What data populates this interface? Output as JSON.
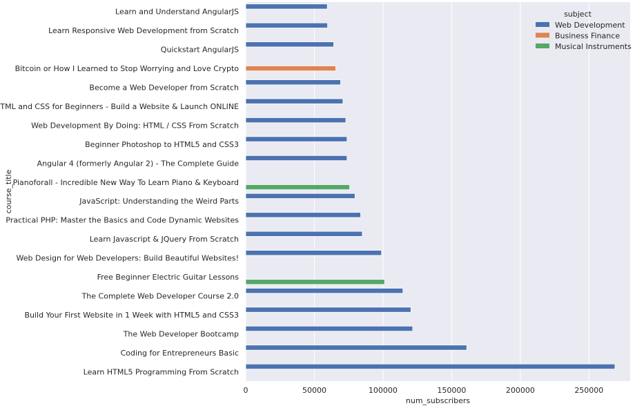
{
  "chart_data": {
    "type": "bar",
    "orientation": "horizontal",
    "xlabel": "num_subscribers",
    "ylabel": "course_title",
    "xlim": [
      0,
      280000
    ],
    "xticks": [
      0,
      50000,
      100000,
      150000,
      200000,
      250000
    ],
    "grid": true,
    "legend_title": "subject",
    "legend_position": "top-right",
    "series": [
      {
        "name": "Web Development",
        "color": "#4c72b0"
      },
      {
        "name": "Business Finance",
        "color": "#dd8452"
      },
      {
        "name": "Musical Instruments",
        "color": "#55a868"
      }
    ],
    "categories": [
      "Learn and Understand AngularJS",
      "Learn Responsive Web Development from Scratch",
      "Quickstart AngularJS",
      "Bitcoin or How I Learned to Stop Worrying and Love Crypto",
      "Become a Web Developer from Scratch",
      "HTML and CSS for Beginners - Build a Website & Launch ONLINE",
      "Web Development By Doing: HTML / CSS From Scratch",
      "Beginner Photoshop to HTML5 and CSS3",
      "Angular 4 (formerly Angular 2) - The Complete Guide",
      "Pianoforall - Incredible New Way To Learn Piano & Keyboard",
      "JavaScript: Understanding the Weird Parts",
      "Practical PHP: Master the Basics and Code Dynamic Websites",
      "Learn Javascript & JQuery From Scratch",
      "Web Design for Web Developers: Build Beautiful Websites!",
      "Free Beginner Electric Guitar Lessons",
      "The Complete Web Developer Course 2.0",
      "Build Your First Website in 1 Week with HTML5 and CSS3",
      "The Web Developer Bootcamp",
      "Coding for Entrepreneurs Basic",
      "Learn HTML5 Programming From Scratch"
    ],
    "values": [
      {
        "category": "Learn and Understand AngularJS",
        "series": "Web Development",
        "value": 59400
      },
      {
        "category": "Learn Responsive Web Development from Scratch",
        "series": "Web Development",
        "value": 59600
      },
      {
        "category": "Quickstart AngularJS",
        "series": "Web Development",
        "value": 64100
      },
      {
        "category": "Bitcoin or How I Learned to Stop Worrying and Love Crypto",
        "series": "Business Finance",
        "value": 65600
      },
      {
        "category": "Become a Web Developer from Scratch",
        "series": "Web Development",
        "value": 69100
      },
      {
        "category": "HTML and CSS for Beginners - Build a Website & Launch ONLINE",
        "series": "Web Development",
        "value": 70800
      },
      {
        "category": "Web Development By Doing: HTML / CSS From Scratch",
        "series": "Web Development",
        "value": 72900
      },
      {
        "category": "Beginner Photoshop to HTML5 and CSS3",
        "series": "Web Development",
        "value": 73800
      },
      {
        "category": "Angular 4 (formerly Angular 2) - The Complete Guide",
        "series": "Web Development",
        "value": 73800
      },
      {
        "category": "Pianoforall - Incredible New Way To Learn Piano & Keyboard",
        "series": "Musical Instruments",
        "value": 75700
      },
      {
        "category": "JavaScript: Understanding the Weird Parts",
        "series": "Web Development",
        "value": 79600
      },
      {
        "category": "Practical PHP: Master the Basics and Code Dynamic Websites",
        "series": "Web Development",
        "value": 83700
      },
      {
        "category": "Learn Javascript & JQuery From Scratch",
        "series": "Web Development",
        "value": 84900
      },
      {
        "category": "Web Design for Web Developers: Build Beautiful Websites!",
        "series": "Web Development",
        "value": 98900
      },
      {
        "category": "Free Beginner Electric Guitar Lessons",
        "series": "Musical Instruments",
        "value": 101200
      },
      {
        "category": "The Complete Web Developer Course 2.0",
        "series": "Web Development",
        "value": 114500
      },
      {
        "category": "Build Your First Website in 1 Week with HTML5 and CSS3",
        "series": "Web Development",
        "value": 120300
      },
      {
        "category": "The Web Developer Bootcamp",
        "series": "Web Development",
        "value": 121600
      },
      {
        "category": "Coding for Entrepreneurs Basic",
        "series": "Web Development",
        "value": 161000
      },
      {
        "category": "Learn HTML5 Programming From Scratch",
        "series": "Web Development",
        "value": 268900
      }
    ]
  }
}
